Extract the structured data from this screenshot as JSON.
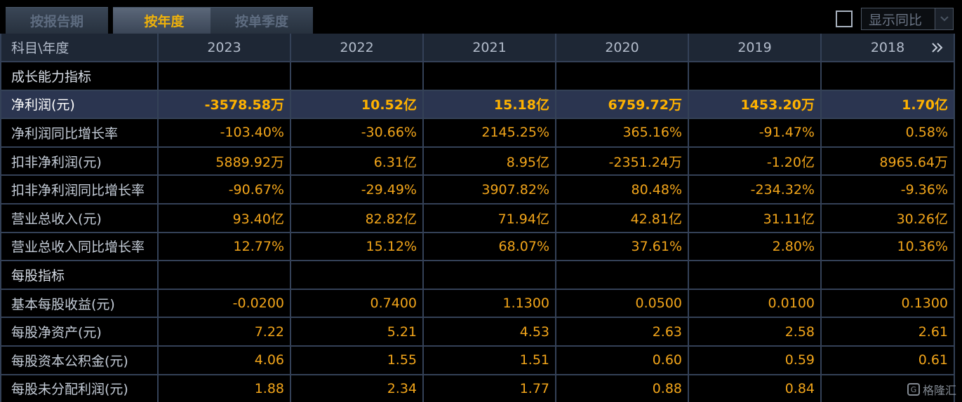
{
  "tabs": [
    {
      "label": "按报告期",
      "active": false
    },
    {
      "label": "按年度",
      "active": true
    },
    {
      "label": "按单季度",
      "active": false
    }
  ],
  "compare_toggle": {
    "checked": false,
    "label": "显示同比"
  },
  "table": {
    "header": {
      "label": "科目\\年度",
      "years": [
        "2023",
        "2022",
        "2021",
        "2020",
        "2019",
        "2018"
      ]
    },
    "rows": [
      {
        "type": "section",
        "label": "成长能力指标",
        "values": [
          "",
          "",
          "",
          "",
          "",
          ""
        ]
      },
      {
        "type": "hl",
        "label": "净利润(元)",
        "values": [
          "-3578.58万",
          "10.52亿",
          "15.18亿",
          "6759.72万",
          "1453.20万",
          "1.70亿"
        ]
      },
      {
        "type": "normal",
        "label": "净利润同比增长率",
        "values": [
          "-103.40%",
          "-30.66%",
          "2145.25%",
          "365.16%",
          "-91.47%",
          "0.58%"
        ]
      },
      {
        "type": "normal",
        "label": "扣非净利润(元)",
        "values": [
          "5889.92万",
          "6.31亿",
          "8.95亿",
          "-2351.24万",
          "-1.20亿",
          "8965.64万"
        ]
      },
      {
        "type": "normal",
        "label": "扣非净利润同比增长率",
        "values": [
          "-90.67%",
          "-29.49%",
          "3907.82%",
          "80.48%",
          "-234.32%",
          "-9.36%"
        ]
      },
      {
        "type": "normal",
        "label": "营业总收入(元)",
        "values": [
          "93.40亿",
          "82.82亿",
          "71.94亿",
          "42.81亿",
          "31.11亿",
          "30.26亿"
        ]
      },
      {
        "type": "normal",
        "label": "营业总收入同比增长率",
        "values": [
          "12.77%",
          "15.12%",
          "68.07%",
          "37.61%",
          "2.80%",
          "10.36%"
        ]
      },
      {
        "type": "section",
        "label": "每股指标",
        "values": [
          "",
          "",
          "",
          "",
          "",
          ""
        ]
      },
      {
        "type": "normal",
        "label": "基本每股收益(元)",
        "values": [
          "-0.0200",
          "0.7400",
          "1.1300",
          "0.0500",
          "0.0100",
          "0.1300"
        ]
      },
      {
        "type": "normal",
        "label": "每股净资产(元)",
        "values": [
          "7.22",
          "5.21",
          "4.53",
          "2.63",
          "2.58",
          "2.61"
        ]
      },
      {
        "type": "normal",
        "label": "每股资本公积金(元)",
        "values": [
          "4.06",
          "1.55",
          "1.51",
          "0.60",
          "0.59",
          "0.61"
        ]
      },
      {
        "type": "normal",
        "label": "每股未分配利润(元)",
        "values": [
          "1.88",
          "2.34",
          "1.77",
          "0.88",
          "0.84",
          ""
        ]
      }
    ]
  },
  "watermark": {
    "icon": "gelonghui-logo-icon",
    "text": "格隆汇"
  },
  "colors": {
    "value": "#f2a51a",
    "highlight_value": "#ffb200",
    "active_tab": "#f0b20a",
    "grid_line": "#344157"
  }
}
